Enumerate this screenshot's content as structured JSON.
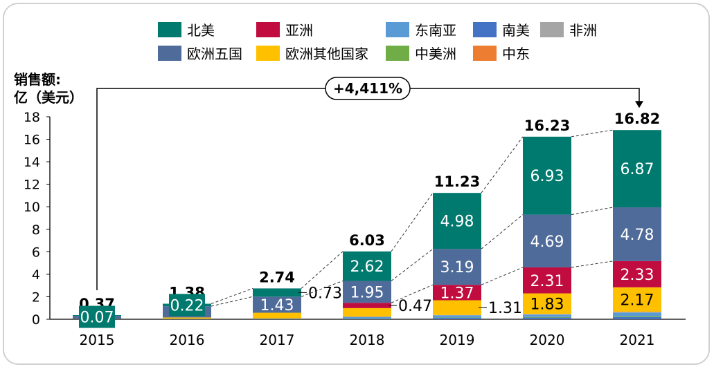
{
  "chart_data": {
    "type": "bar",
    "stacked": true,
    "ylabel": "销售额:\n亿（美元）",
    "ylabel_lines": [
      "销售额:",
      "亿（美元）"
    ],
    "ylim": [
      0,
      18
    ],
    "yticks": [
      0,
      2,
      4,
      6,
      8,
      10,
      12,
      14,
      16,
      18
    ],
    "grid": false,
    "legend_placement": "top",
    "categories": [
      "2015",
      "2016",
      "2017",
      "2018",
      "2019",
      "2020",
      "2021"
    ],
    "totals": [
      0.37,
      1.38,
      2.74,
      6.03,
      11.23,
      16.23,
      16.82
    ],
    "series": [
      {
        "name": "南美",
        "color": "#4472C4",
        "values": [
          0.0,
          0.01,
          0.02,
          0.04,
          0.12,
          0.15,
          0.2
        ]
      },
      {
        "name": "中美洲",
        "color": "#70AD47",
        "values": [
          0.0,
          0.0,
          0.01,
          0.02,
          0.03,
          0.05,
          0.08
        ]
      },
      {
        "name": "东南亚",
        "color": "#5B9BD5",
        "values": [
          0.01,
          0.02,
          0.03,
          0.15,
          0.2,
          0.22,
          0.32
        ]
      },
      {
        "name": "非洲",
        "color": "#A5A5A5",
        "values": [
          0.0,
          0.0,
          0.01,
          0.01,
          0.02,
          0.03,
          0.04
        ]
      },
      {
        "name": "中东",
        "color": "#ED7D31",
        "values": [
          0.0,
          0.01,
          0.01,
          0.02,
          0.01,
          0.02,
          0.03
        ]
      },
      {
        "name": "欧洲其他国家",
        "color": "#FFC000",
        "values": [
          0.01,
          0.12,
          0.5,
          0.75,
          1.31,
          1.83,
          2.17
        ],
        "labels": [
          null,
          null,
          null,
          null,
          "1.31",
          "1.83",
          "2.17"
        ]
      },
      {
        "name": "亚洲",
        "color": "#C00C3F",
        "values": [
          0.0,
          0.0,
          0.0,
          0.47,
          1.37,
          2.31,
          2.33
        ],
        "labels": [
          null,
          null,
          null,
          "0.47",
          "1.37",
          "2.31",
          "2.33"
        ]
      },
      {
        "name": "欧洲五国",
        "color": "#4F6B9A",
        "values": [
          0.28,
          1.0,
          1.43,
          1.95,
          3.19,
          4.69,
          4.78
        ],
        "labels": [
          null,
          null,
          "1.43",
          "1.95",
          "3.19",
          "4.69",
          "4.78"
        ]
      },
      {
        "name": "北美",
        "color": "#007A6E",
        "values": [
          0.07,
          0.22,
          0.73,
          2.62,
          4.98,
          6.93,
          6.87
        ],
        "labels": [
          "0.07",
          "0.22",
          "0.73",
          "2.62",
          "4.98",
          "6.93",
          "6.87"
        ]
      }
    ],
    "legend_order": [
      "北美",
      "亚洲",
      "东南亚",
      "南美",
      "非洲",
      "欧洲五国",
      "欧洲其他国家",
      "中美洲",
      "中东"
    ],
    "annotation": "+4,411%"
  }
}
